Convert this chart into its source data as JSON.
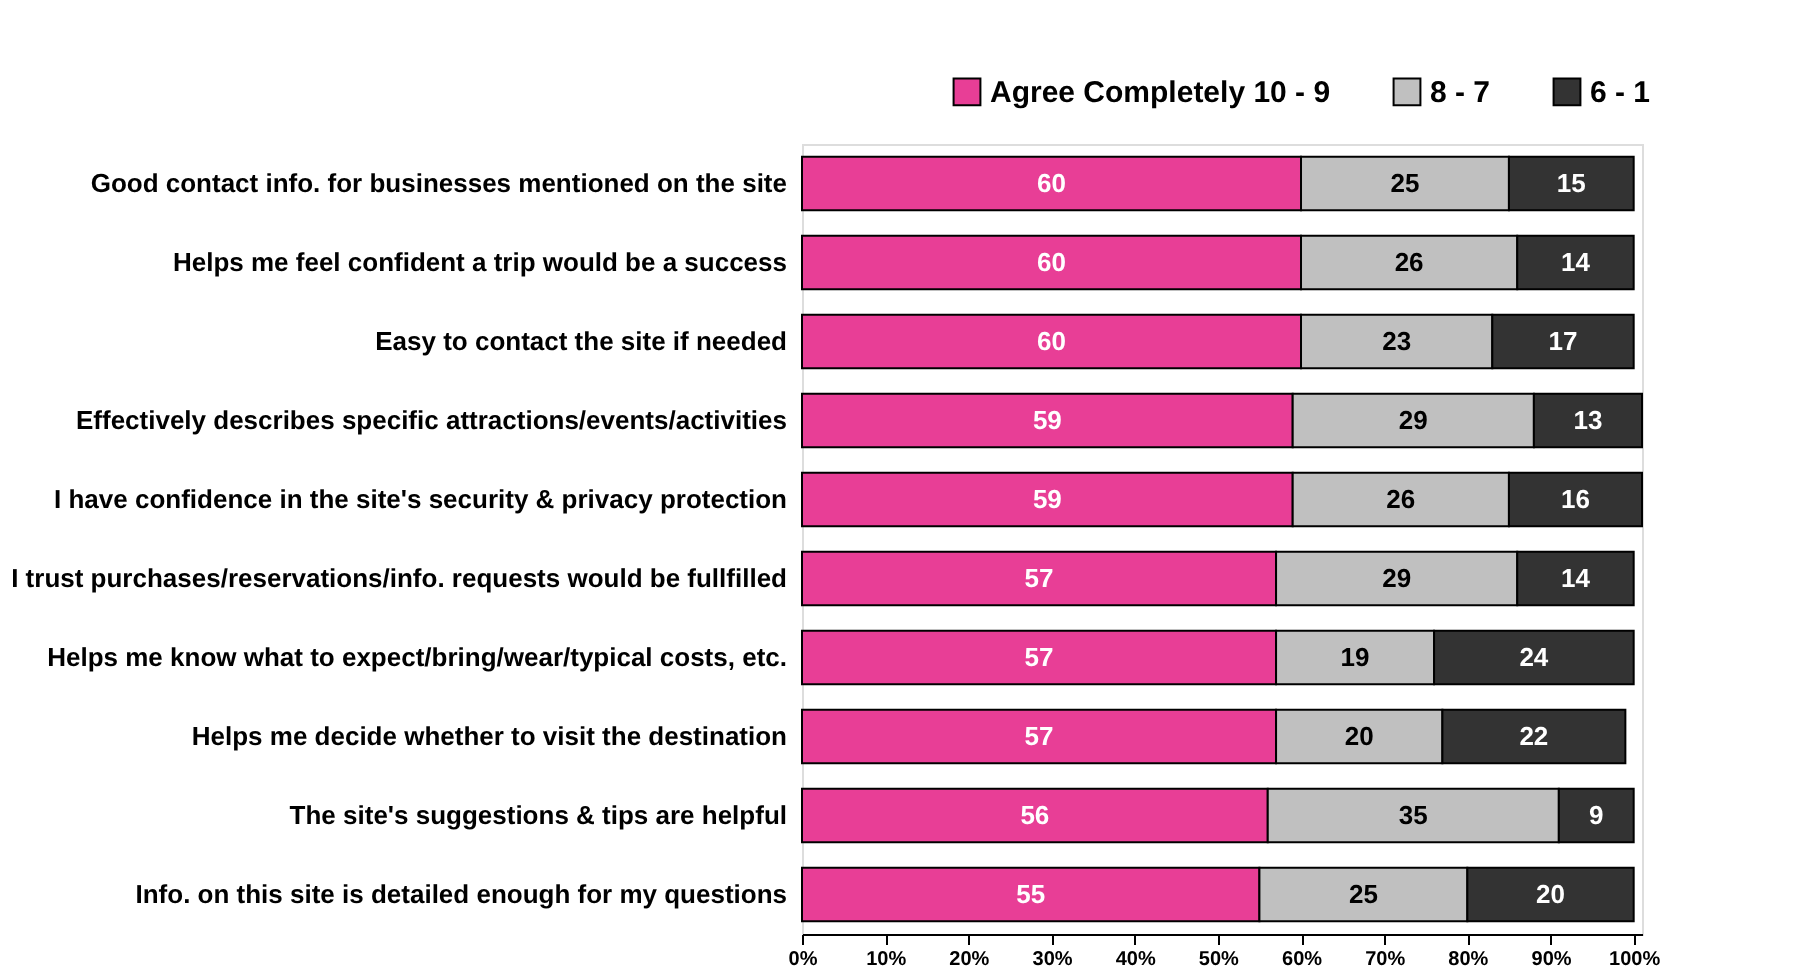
{
  "chart_data": {
    "type": "bar",
    "orientation": "horizontal",
    "stacked": true,
    "data_labels": true,
    "legend": "top right",
    "grid": false,
    "categories": [
      "Good contact info. for businesses mentioned on the site",
      "Helps me feel confident a trip would be a success",
      "Easy to contact the site if needed",
      "Effectively describes specific attractions/events/activities",
      "I have confidence in the site's security & privacy protection",
      "I trust purchases/reservations/info. requests would be fullfilled",
      "Helps me know what to expect/bring/wear/typical costs, etc.",
      "Helps me decide whether to visit the destination",
      "The site's suggestions & tips are helpful",
      "Info. on this site is detailed enough for my questions"
    ],
    "series": [
      {
        "name": "Agree Completely 10 - 9",
        "color": "#e83e96",
        "values": [
          60,
          60,
          60,
          59,
          59,
          57,
          57,
          57,
          56,
          55
        ]
      },
      {
        "name": "8 - 7",
        "color": "#c0c0c0",
        "values": [
          25,
          26,
          23,
          29,
          26,
          29,
          19,
          20,
          35,
          25
        ]
      },
      {
        "name": "6 - 1",
        "color": "#333333",
        "values": [
          15,
          14,
          17,
          13,
          16,
          14,
          24,
          22,
          9,
          20
        ]
      }
    ],
    "xlim": [
      0,
      101
    ],
    "xticks": [
      {
        "value": 0,
        "label": "0%"
      },
      {
        "value": 10,
        "label": "10%"
      },
      {
        "value": 20,
        "label": "20%"
      },
      {
        "value": 30,
        "label": "30%"
      },
      {
        "value": 40,
        "label": "40%"
      },
      {
        "value": 50,
        "label": "50%"
      },
      {
        "value": 60,
        "label": "60%"
      },
      {
        "value": 70,
        "label": "70%"
      },
      {
        "value": 80,
        "label": "80%"
      },
      {
        "value": 90,
        "label": "90%"
      },
      {
        "value": 100,
        "label": "100%"
      }
    ]
  }
}
